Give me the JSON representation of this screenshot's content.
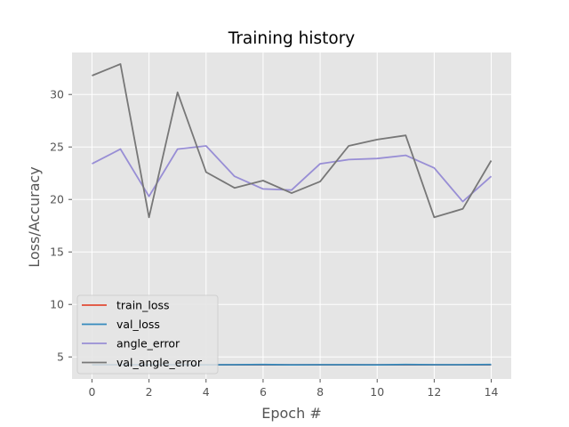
{
  "chart_data": {
    "type": "line",
    "title": "Training history",
    "xlabel": "Epoch #",
    "ylabel": "Loss/Accuracy",
    "x": [
      0,
      1,
      2,
      3,
      4,
      5,
      6,
      7,
      8,
      9,
      10,
      11,
      12,
      13,
      14
    ],
    "xlim": [
      -0.7,
      14.7
    ],
    "ylim": [
      2.9,
      34.0
    ],
    "xticks": [
      0,
      2,
      4,
      6,
      8,
      10,
      12,
      14
    ],
    "yticks": [
      5,
      10,
      15,
      20,
      25,
      30
    ],
    "grid": true,
    "legend_position": "lower-left",
    "series": [
      {
        "name": "train_loss",
        "color": "#E24A33",
        "values": [
          4.25,
          4.25,
          4.25,
          4.25,
          4.25,
          4.25,
          4.25,
          4.25,
          4.25,
          4.25,
          4.25,
          4.25,
          4.25,
          4.25,
          4.25
        ]
      },
      {
        "name": "val_loss",
        "color": "#348ABD",
        "values": [
          4.25,
          4.26,
          4.25,
          4.26,
          4.25,
          4.26,
          4.27,
          4.25,
          4.26,
          4.26,
          4.25,
          4.27,
          4.26,
          4.26,
          4.27
        ]
      },
      {
        "name": "angle_error",
        "color": "#988ED5",
        "values": [
          23.4,
          24.8,
          20.3,
          24.8,
          25.1,
          22.2,
          21.0,
          20.9,
          23.4,
          23.8,
          23.9,
          24.2,
          23.0,
          19.8,
          22.2
        ]
      },
      {
        "name": "val_angle_error",
        "color": "#777777",
        "values": [
          31.8,
          32.9,
          18.3,
          30.2,
          22.6,
          21.1,
          21.8,
          20.6,
          21.7,
          25.1,
          25.7,
          26.1,
          18.3,
          19.1,
          23.7
        ]
      }
    ]
  }
}
